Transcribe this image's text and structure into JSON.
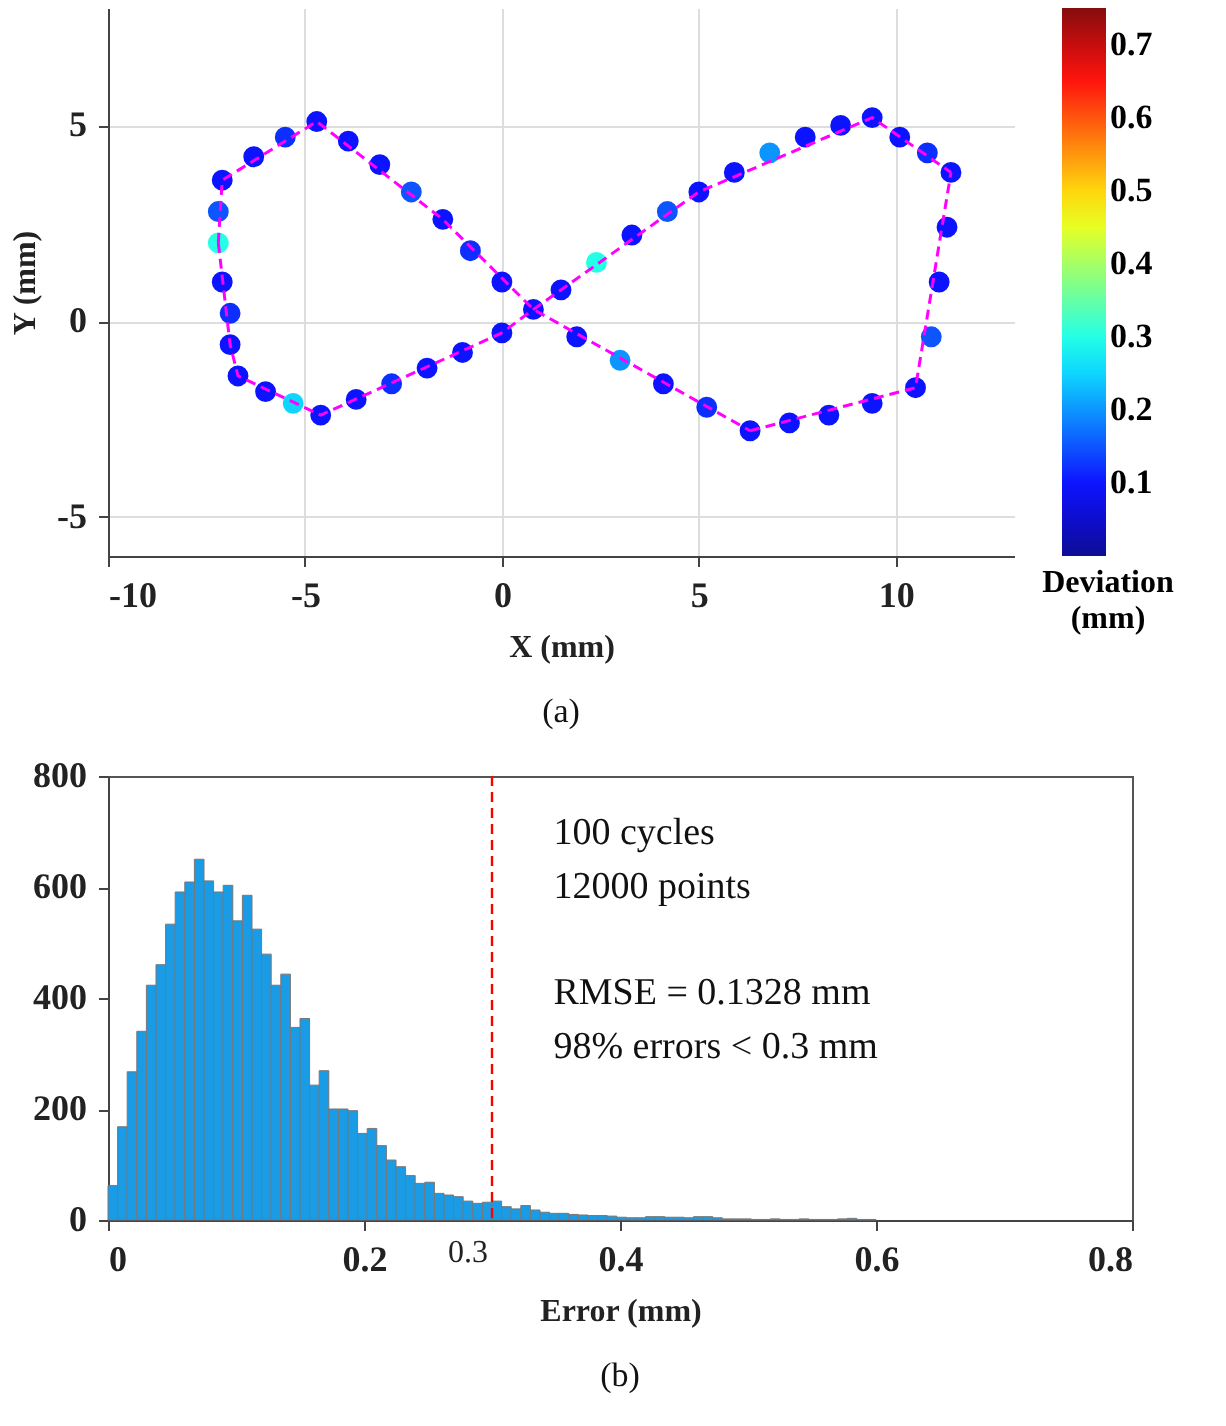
{
  "chart_data": [
    {
      "type": "scatter",
      "xlabel": "X (mm)",
      "ylabel": "Y (mm)",
      "clabel": "Deviation (mm)",
      "xlim": [
        -10,
        13
      ],
      "ylim": [
        -6,
        8
      ],
      "xticks": [
        -10,
        -5,
        0,
        5,
        10
      ],
      "yticks": [
        -5,
        0,
        5
      ],
      "clim": [
        0,
        0.75
      ],
      "cticks": [
        0.1,
        0.2,
        0.3,
        0.4,
        0.5,
        0.6,
        0.7
      ],
      "grid": true,
      "annotations": [
        "(a)"
      ],
      "series": [
        {
          "type": "scatter",
          "marker": "circle",
          "x": [
            0.8,
            0,
            -0.8,
            -1.5,
            -2.3,
            -3.1,
            -3.9,
            -4.7,
            -5.5,
            -6.3,
            -7.1,
            -7.2,
            -7.2,
            -7.1,
            -6.9,
            -6.9,
            -6.7,
            -6.0,
            -5.3,
            -4.6,
            -3.7,
            -2.8,
            -1.9,
            -1.0,
            0,
            1.5,
            2.4,
            3.3,
            4.2,
            5.0,
            5.9,
            6.8,
            7.7,
            8.6,
            9.4,
            10.1,
            10.8,
            11.4,
            11.3,
            11.1,
            10.9,
            10.5,
            9.4,
            8.3,
            7.3,
            6.3,
            5.2,
            4.1,
            3.0,
            1.9
          ],
          "values": [
            0.3,
            1.0,
            1.8,
            2.6,
            3.3,
            4.0,
            4.6,
            5.1,
            4.7,
            4.2,
            3.6,
            2.8,
            2.0,
            1.0,
            0.2,
            -0.6,
            -1.4,
            -1.8,
            -2.1,
            -2.4,
            -2.0,
            -1.6,
            -1.2,
            -0.8,
            -0.3,
            0.8,
            1.5,
            2.2,
            2.8,
            3.3,
            3.8,
            4.3,
            4.7,
            5.0,
            5.2,
            4.7,
            4.3,
            3.8,
            2.4,
            1.0,
            -0.4,
            -1.7,
            -2.1,
            -2.4,
            -2.6,
            -2.8,
            -2.2,
            -1.6,
            -1.0,
            -0.4
          ],
          "cvalues": [
            0.1,
            0.1,
            0.12,
            0.1,
            0.15,
            0.1,
            0.1,
            0.1,
            0.12,
            0.1,
            0.1,
            0.15,
            0.3,
            0.1,
            0.12,
            0.1,
            0.1,
            0.1,
            0.25,
            0.1,
            0.1,
            0.12,
            0.1,
            0.1,
            0.1,
            0.1,
            0.3,
            0.1,
            0.15,
            0.1,
            0.1,
            0.2,
            0.1,
            0.1,
            0.1,
            0.1,
            0.12,
            0.1,
            0.1,
            0.1,
            0.15,
            0.1,
            0.1,
            0.1,
            0.1,
            0.1,
            0.12,
            0.1,
            0.2,
            0.1
          ],
          "colors": [
            "#0008ff",
            "#0008ff",
            "#0024ff",
            "#0008ff",
            "#004cff",
            "#0008ff",
            "#0008ff",
            "#0008ff",
            "#0024ff",
            "#0008ff",
            "#0008ff",
            "#004cff",
            "#19ffe6",
            "#0008ff",
            "#0024ff",
            "#0008ff",
            "#0008ff",
            "#0008ff",
            "#00d4ff",
            "#0008ff",
            "#0008ff",
            "#0024ff",
            "#0008ff",
            "#0008ff",
            "#0008ff",
            "#0008ff",
            "#19ffe6",
            "#0008ff",
            "#004cff",
            "#0008ff",
            "#0008ff",
            "#0090ff",
            "#0008ff",
            "#0008ff",
            "#0008ff",
            "#0008ff",
            "#0024ff",
            "#0008ff",
            "#0008ff",
            "#0008ff",
            "#004cff",
            "#0008ff",
            "#0008ff",
            "#0008ff",
            "#0008ff",
            "#0008ff",
            "#0024ff",
            "#0008ff",
            "#0090ff",
            "#0008ff"
          ]
        },
        {
          "type": "line",
          "color": "#ff00ff",
          "line_style": "dashed",
          "x": [
            -7.2,
            -7.1,
            -4.7,
            -1.5,
            0.8,
            6.3
          ],
          "values": [
            2.0,
            3.6,
            5.1,
            2.6,
            0.3,
            -2.8
          ]
        },
        {
          "type": "line",
          "color": "#ff00ff",
          "line_style": "dashed",
          "x": [
            -7.2,
            -6.9,
            -6.7,
            -4.6,
            0,
            0.8,
            5.0,
            9.4,
            11.4
          ],
          "values": [
            2.0,
            -0.6,
            -1.4,
            -2.4,
            -0.3,
            0.3,
            3.3,
            5.2,
            3.8
          ]
        },
        {
          "type": "line",
          "color": "#ff00ff",
          "line_style": "dashed",
          "x": [
            6.3,
            10.5,
            11.4
          ],
          "values": [
            -2.8,
            -1.7,
            3.8
          ]
        }
      ]
    },
    {
      "type": "histogram",
      "xlabel": "Error (mm)",
      "xlim": [
        0,
        0.8
      ],
      "ylim": [
        0,
        800
      ],
      "xticks": [
        0,
        0.2,
        0.4,
        0.6,
        0.8
      ],
      "yticks": [
        0,
        200,
        400,
        600,
        800
      ],
      "color": "#1a9be6",
      "bins": [
        0,
        0.0075,
        0.015,
        0.0225,
        0.03,
        0.0375,
        0.045,
        0.0525,
        0.06,
        0.0675,
        0.075,
        0.0825,
        0.09,
        0.0975,
        0.105,
        0.1125,
        0.12,
        0.1275,
        0.135,
        0.1425,
        0.15,
        0.1575,
        0.165,
        0.1725,
        0.18,
        0.1875,
        0.195,
        0.2025,
        0.21,
        0.2175,
        0.225,
        0.2325,
        0.24,
        0.2475,
        0.255,
        0.2625,
        0.27,
        0.2775,
        0.285,
        0.2925,
        0.3,
        0.3075,
        0.315,
        0.3225,
        0.33,
        0.3375,
        0.345,
        0.3525,
        0.36,
        0.3675,
        0.375,
        0.3825,
        0.39,
        0.3975,
        0.405,
        0.4125,
        0.42,
        0.4275,
        0.435,
        0.4425,
        0.45,
        0.4575,
        0.465,
        0.4725,
        0.48,
        0.4875,
        0.495,
        0.5025,
        0.51,
        0.5175,
        0.525,
        0.5325,
        0.54,
        0.5475,
        0.555,
        0.5625,
        0.57,
        0.5775,
        0.585,
        0.5925,
        0.6
      ],
      "values": [
        62,
        168,
        267,
        340,
        423,
        460,
        533,
        591,
        609,
        650,
        611,
        591,
        603,
        539,
        585,
        524,
        479,
        423,
        443,
        347,
        363,
        243,
        269,
        200,
        200,
        197,
        156,
        165,
        134,
        108,
        96,
        80,
        66,
        68,
        48,
        45,
        42,
        34,
        30,
        32,
        34,
        24,
        20,
        26,
        18,
        14,
        12,
        12,
        10,
        9,
        8,
        8,
        7,
        5,
        4,
        4,
        6,
        6,
        5,
        5,
        4,
        6,
        6,
        4,
        2,
        2,
        2,
        1,
        1,
        2,
        1,
        1,
        2,
        1,
        1,
        1,
        2,
        3,
        1,
        1
      ],
      "ref_lines": [
        {
          "axis": "x",
          "value": 0.3,
          "label": "0.3",
          "color": "#ff0000",
          "line_style": "dashed"
        }
      ],
      "annotations": [
        "100 cycles",
        "12000 points",
        "RMSE = 0.1328 mm",
        "98% errors < 0.3 mm",
        "(b)"
      ]
    }
  ]
}
